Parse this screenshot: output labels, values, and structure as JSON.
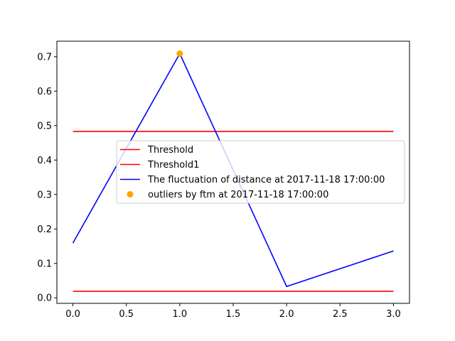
{
  "chart_data": {
    "type": "line",
    "x": [
      0,
      1,
      2,
      3
    ],
    "series": [
      {
        "name": "Threshold",
        "kind": "line",
        "color": "#ff0000",
        "x": [
          0,
          3
        ],
        "values": [
          0.483,
          0.483
        ]
      },
      {
        "name": "Threshold1",
        "kind": "line",
        "color": "#ff0000",
        "x": [
          0,
          3
        ],
        "values": [
          0.019,
          0.019
        ]
      },
      {
        "name": "The fluctuation of distance at 2017-11-18 17:00:00",
        "kind": "line",
        "color": "#0000ff",
        "x": [
          0,
          1,
          2,
          3
        ],
        "values": [
          0.159,
          0.709,
          0.033,
          0.136
        ]
      },
      {
        "name": "outliers by ftm at 2017-11-18 17:00:00",
        "kind": "scatter",
        "color": "#ffa500",
        "x": [
          1
        ],
        "values": [
          0.709
        ]
      }
    ],
    "xlim": [
      -0.15,
      3.15
    ],
    "ylim": [
      -0.016,
      0.745
    ],
    "xticks": [
      0.0,
      0.5,
      1.0,
      1.5,
      2.0,
      2.5,
      3.0
    ],
    "xtick_labels": [
      "0.0",
      "0.5",
      "1.0",
      "1.5",
      "2.0",
      "2.5",
      "3.0"
    ],
    "yticks": [
      0.0,
      0.1,
      0.2,
      0.3,
      0.4,
      0.5,
      0.6,
      0.7
    ],
    "ytick_labels": [
      "0.0",
      "0.1",
      "0.2",
      "0.3",
      "0.4",
      "0.5",
      "0.6",
      "0.7"
    ],
    "title": "",
    "xlabel": "",
    "ylabel": "",
    "grid": false,
    "legend_position": "center"
  }
}
